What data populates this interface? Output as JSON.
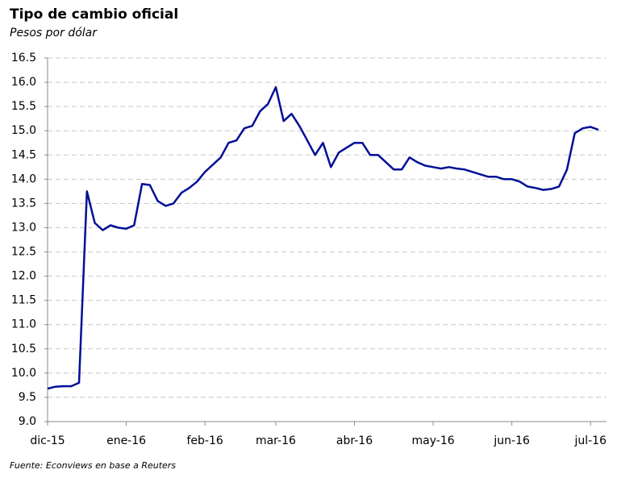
{
  "chart_data": {
    "type": "line",
    "title": "Tipo de cambio oficial",
    "subtitle": "Pesos por dólar",
    "source": "Fuente: Econviews en base a Reuters",
    "categories": [
      "dic-15",
      null,
      null,
      null,
      null,
      null,
      null,
      null,
      null,
      null,
      "ene-16",
      null,
      null,
      null,
      null,
      null,
      null,
      null,
      null,
      null,
      "feb-16",
      null,
      null,
      null,
      null,
      null,
      null,
      null,
      null,
      "mar-16",
      null,
      null,
      null,
      null,
      null,
      null,
      null,
      null,
      null,
      "abr-16",
      null,
      null,
      null,
      null,
      null,
      null,
      null,
      null,
      null,
      "may-16",
      null,
      null,
      null,
      null,
      null,
      null,
      null,
      null,
      null,
      "jun-16",
      null,
      null,
      null,
      null,
      null,
      null,
      null,
      null,
      null,
      "jul-16",
      null
    ],
    "values": [
      9.68,
      9.72,
      9.73,
      9.73,
      9.8,
      13.75,
      13.1,
      12.95,
      13.05,
      13.0,
      12.98,
      13.05,
      13.9,
      13.88,
      13.55,
      13.45,
      13.5,
      13.72,
      13.82,
      13.95,
      14.15,
      14.3,
      14.45,
      14.75,
      14.8,
      15.05,
      15.1,
      15.4,
      15.55,
      15.9,
      15.2,
      15.35,
      15.1,
      14.8,
      14.5,
      14.75,
      14.25,
      14.55,
      14.65,
      14.75,
      14.75,
      14.5,
      14.5,
      14.35,
      14.2,
      14.2,
      14.45,
      14.35,
      14.28,
      14.25,
      14.22,
      14.25,
      14.22,
      14.2,
      14.15,
      14.1,
      14.05,
      14.05,
      14.0,
      14.0,
      13.95,
      13.85,
      13.82,
      13.78,
      13.8,
      13.85,
      14.2,
      14.95,
      15.05,
      15.08,
      15.02
    ],
    "color": "#000f96",
    "ylim": [
      9,
      16.5
    ],
    "yticks": [
      {
        "value": 9,
        "label": "9.0"
      },
      9.5,
      {
        "value": 10,
        "label": "10.0"
      },
      10.5,
      {
        "value": 11,
        "label": "11.0"
      },
      11.5,
      {
        "value": 12,
        "label": "12.0"
      },
      12.5,
      {
        "value": 13,
        "label": "13.0"
      },
      13.5,
      {
        "value": 14,
        "label": "14.0"
      },
      14.5,
      {
        "value": 15,
        "label": "15.0"
      },
      15.5,
      {
        "value": 16,
        "label": "16.0"
      },
      16.5
    ],
    "grid": true
  }
}
